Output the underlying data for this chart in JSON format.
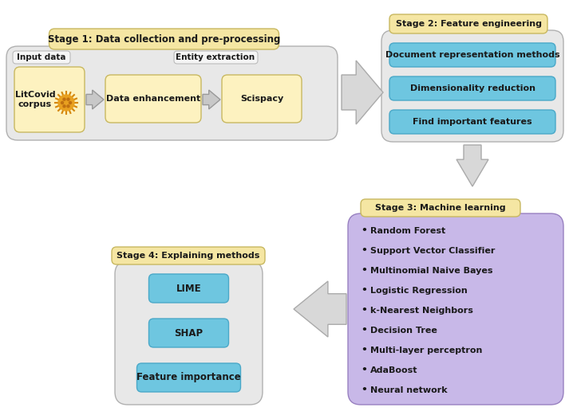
{
  "bg_color": "#ffffff",
  "stage1": {
    "title": "Stage 1: Data collection and pre-processing",
    "title_box_color": "#f5e6a3",
    "title_box_edge": "#c8b860",
    "container_color": "#e8e8e8",
    "container_edge": "#b0b0b0",
    "input_label": "Input data",
    "entity_label": "Entity extraction",
    "boxes": [
      "LitCovid\ncorpus",
      "Data enhancement",
      "Scispacy"
    ],
    "box_color": "#fdf2c0",
    "box_edge": "#c8b860"
  },
  "stage2": {
    "title": "Stage 2: Feature engineering",
    "title_box_color": "#f5e6a3",
    "title_box_edge": "#c8b860",
    "container_color": "#e8e8e8",
    "container_edge": "#b0b0b0",
    "items": [
      "Document representation methods",
      "Dimensionality reduction",
      "Find important features"
    ],
    "item_color": "#6ec6e0",
    "item_edge": "#4aa8c8"
  },
  "stage3": {
    "title": "Stage 3: Machine learning",
    "title_box_color": "#f5e6a3",
    "title_box_edge": "#c8b860",
    "container_color": "#c8b8e8",
    "container_edge": "#9880c0",
    "items": [
      "Random Forest",
      "Support Vector Classifier",
      "Multinomial Naive Bayes",
      "Logistic Regression",
      "k-Nearest Neighbors",
      "Decision Tree",
      "Multi-layer perceptron",
      "AdaBoost",
      "Neural network"
    ]
  },
  "stage4": {
    "title": "Stage 4: Explaining methods",
    "title_box_color": "#f5e6a3",
    "title_box_edge": "#c8b860",
    "container_color": "#e8e8e8",
    "container_edge": "#b0b0b0",
    "items": [
      "LIME",
      "SHAP",
      "Feature importance"
    ],
    "item_color": "#6ec6e0",
    "item_edge": "#4aa8c8"
  },
  "arrow_fill": "#d8d8d8",
  "arrow_edge": "#aaaaaa",
  "small_arrow_fill": "#c8c8c8",
  "small_arrow_edge": "#999999"
}
